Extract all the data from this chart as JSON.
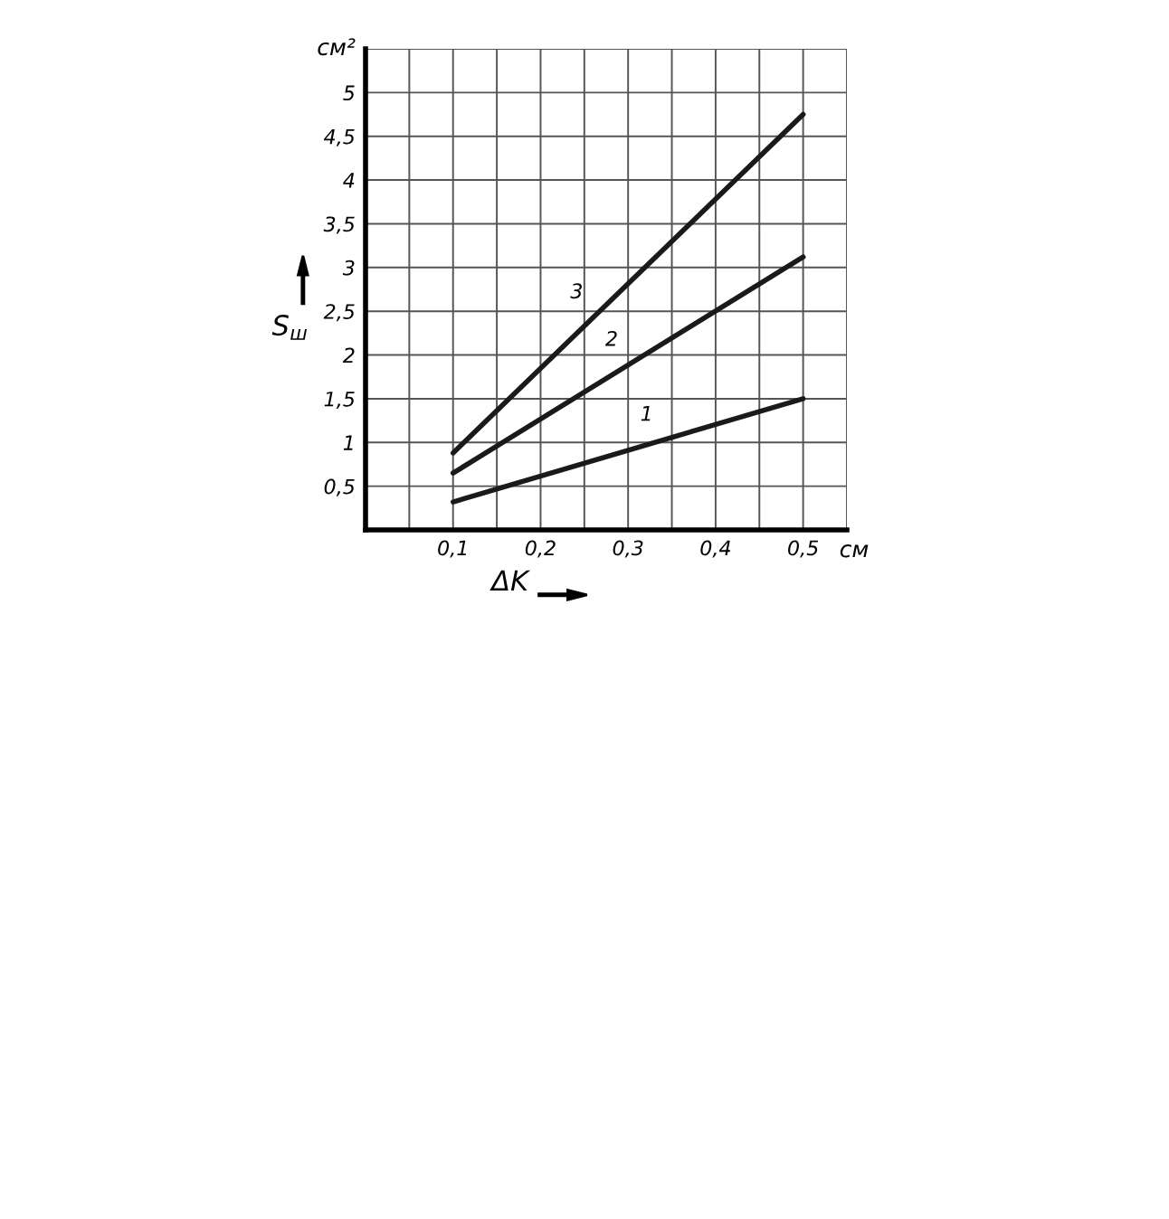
{
  "chart_data": {
    "type": "line",
    "xlabel": "ΔK",
    "ylabel": "S$_{ш}$",
    "annotations": [
      "см",
      "см²"
    ],
    "x": [
      0.1,
      0.5
    ],
    "series": [
      {
        "name": "1",
        "color": "#1a1a1a",
        "values": [
          0.32,
          1.5
        ]
      },
      {
        "name": "2",
        "color": "#1a1a1a",
        "values": [
          0.65,
          3.12
        ]
      },
      {
        "name": "3",
        "color": "#1a1a1a",
        "values": [
          0.88,
          4.75
        ]
      }
    ],
    "xlim": [
      0,
      0.55
    ],
    "ylim": [
      0,
      5.5
    ],
    "xticks": [
      {
        "value": 0.05,
        "label": null
      },
      {
        "value": 0.1,
        "label": "0,1"
      },
      {
        "value": 0.15,
        "label": null
      },
      {
        "value": 0.2,
        "label": "0,2"
      },
      {
        "value": 0.25,
        "label": null
      },
      {
        "value": 0.3,
        "label": "0,3"
      },
      {
        "value": 0.35,
        "label": null
      },
      {
        "value": 0.4,
        "label": "0,4"
      },
      {
        "value": 0.45,
        "label": null
      },
      {
        "value": 0.5,
        "label": "0,5"
      },
      {
        "value": 0.55,
        "label": null
      }
    ],
    "yticks": [
      {
        "value": 0.5,
        "label": "0,5"
      },
      1,
      {
        "value": 1.5,
        "label": "1,5"
      },
      2,
      {
        "value": 2.5,
        "label": "2,5"
      },
      3,
      {
        "value": 3.5,
        "label": "3,5"
      },
      4,
      {
        "value": 4.5,
        "label": "4,5"
      },
      5,
      {
        "value": 5.5,
        "label": null
      }
    ],
    "grid": true,
    "legend": false,
    "marker": "none",
    "line_style": "solid"
  }
}
